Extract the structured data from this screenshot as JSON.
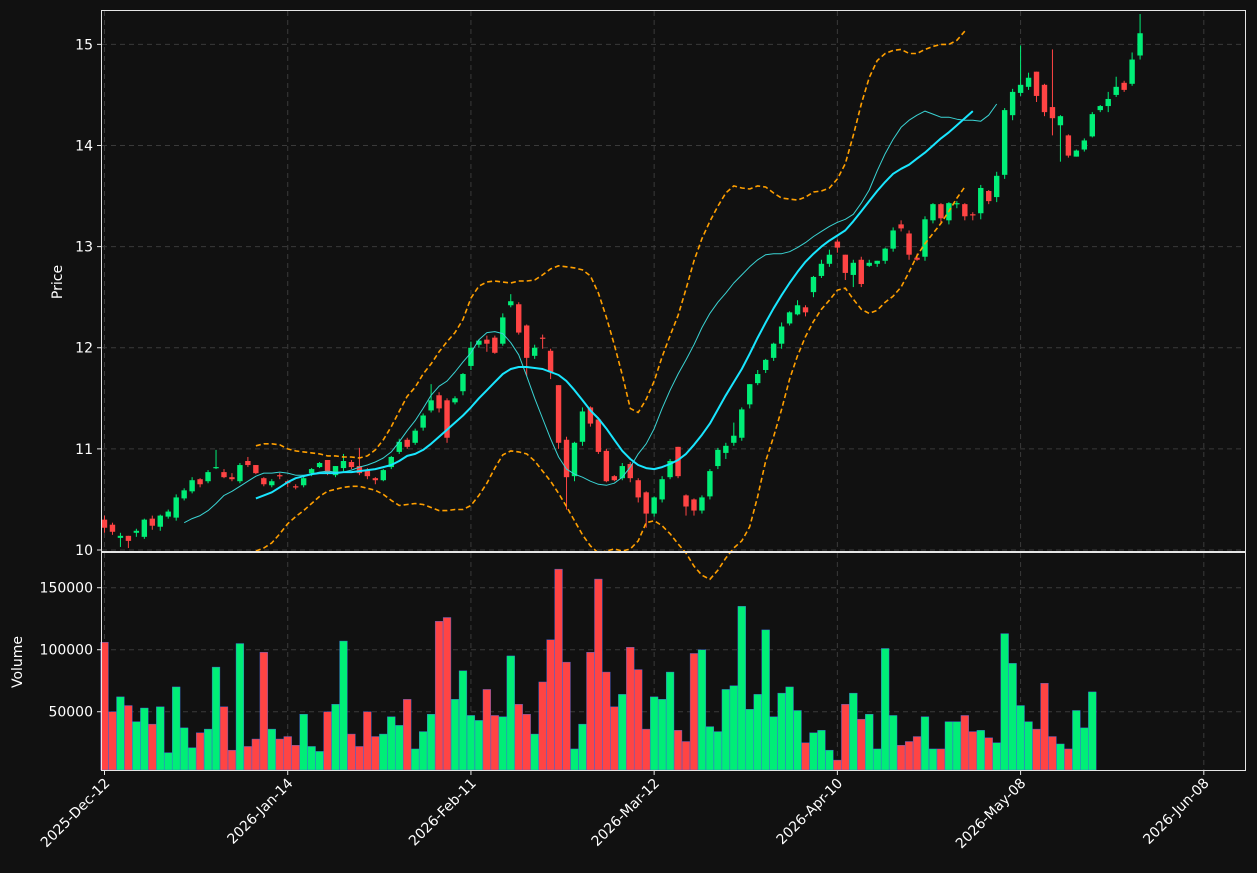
{
  "chart_data": [
    {
      "type": "candlestick",
      "panel": "price",
      "ylabel": "Price",
      "ylim": [
        9.99,
        15.33
      ],
      "yticks": [
        10,
        11,
        12,
        13,
        14,
        15
      ],
      "grid": true,
      "xlabels": [
        "2025-Dec-12",
        "2026-Jan-14",
        "2026-Feb-11",
        "2026-Mar-12",
        "2026-Apr-10",
        "2026-May-08",
        "2026-Jun-08"
      ],
      "xlabel_bar_index": [
        0,
        23,
        46,
        69,
        92,
        115,
        138
      ],
      "close": [
        10.22,
        10.18,
        10.14,
        10.09,
        10.19,
        10.3,
        10.24,
        10.34,
        10.38,
        10.52,
        10.59,
        10.69,
        10.65,
        10.77,
        10.82,
        10.72,
        10.7,
        10.84,
        10.84,
        10.76,
        10.65,
        10.68,
        10.73,
        10.66,
        10.62,
        10.71,
        10.8,
        10.86,
        10.76,
        10.83,
        10.88,
        10.82,
        10.76,
        10.73,
        10.69,
        10.79,
        10.92,
        11.07,
        11.02,
        11.18,
        11.33,
        11.48,
        11.4,
        11.11,
        11.5,
        11.74,
        12.0,
        12.07,
        12.04,
        11.95,
        12.3,
        12.46,
        12.15,
        11.9,
        12.0,
        12.09,
        11.76,
        11.06,
        10.72,
        11.06,
        11.37,
        11.25,
        10.97,
        10.68,
        10.69,
        10.83,
        10.71,
        10.52,
        10.36,
        10.52,
        10.7,
        10.88,
        10.73,
        10.43,
        10.39,
        10.52,
        10.78,
        10.99,
        11.03,
        11.13,
        11.39,
        11.64,
        11.74,
        11.88,
        12.04,
        12.21,
        12.35,
        12.42,
        12.35,
        12.7,
        12.83,
        12.92,
        12.99,
        12.74,
        12.84,
        12.63,
        12.84,
        12.86,
        12.98,
        13.16,
        13.18,
        12.92,
        12.87,
        13.27,
        13.42,
        13.28,
        13.43,
        13.43,
        13.3,
        13.31,
        13.58,
        13.45,
        13.7,
        14.35,
        14.53,
        14.6,
        14.67,
        14.49,
        14.33,
        14.27,
        14.29,
        13.9,
        13.95,
        14.05,
        14.31,
        14.39,
        14.46,
        14.58,
        14.55,
        14.85,
        15.11
      ],
      "open": [
        10.3,
        10.25,
        10.12,
        10.14,
        10.17,
        10.13,
        10.31,
        10.23,
        10.33,
        10.32,
        10.51,
        10.58,
        10.7,
        10.68,
        10.82,
        10.77,
        10.72,
        10.68,
        10.88,
        10.84,
        10.71,
        10.64,
        10.74,
        10.68,
        10.63,
        10.64,
        10.76,
        10.82,
        10.89,
        10.74,
        10.81,
        10.87,
        10.83,
        10.79,
        10.71,
        10.69,
        10.82,
        10.97,
        11.09,
        11.06,
        11.21,
        11.38,
        11.53,
        11.48,
        11.46,
        11.57,
        11.82,
        12.03,
        12.08,
        12.1,
        12.04,
        12.42,
        12.43,
        12.22,
        11.92,
        12.1,
        11.97,
        11.63,
        11.09,
        10.73,
        11.07,
        11.41,
        11.29,
        10.98,
        10.73,
        10.71,
        10.85,
        10.69,
        10.57,
        10.36,
        10.5,
        10.72,
        11.02,
        10.54,
        10.5,
        10.39,
        10.53,
        10.83,
        10.96,
        11.06,
        11.11,
        11.44,
        11.65,
        11.78,
        11.9,
        12.04,
        12.24,
        12.33,
        12.4,
        12.55,
        12.71,
        12.83,
        13.05,
        12.92,
        12.72,
        12.87,
        12.81,
        12.83,
        12.86,
        12.98,
        13.22,
        13.13,
        12.89,
        12.9,
        13.26,
        13.42,
        13.26,
        13.42,
        13.42,
        13.32,
        13.33,
        13.55,
        13.49,
        13.71,
        14.3,
        14.52,
        14.58,
        14.73,
        14.6,
        14.38,
        14.2,
        14.1,
        13.89,
        13.96,
        14.09,
        14.35,
        14.39,
        14.5,
        14.62,
        14.61,
        14.89
      ],
      "high": [
        10.34,
        10.27,
        10.17,
        10.14,
        10.21,
        10.31,
        10.34,
        10.35,
        10.4,
        10.55,
        10.61,
        10.72,
        10.71,
        10.79,
        10.99,
        10.8,
        10.76,
        10.86,
        10.92,
        10.84,
        10.72,
        10.7,
        10.76,
        10.69,
        10.65,
        10.73,
        10.81,
        10.87,
        10.89,
        10.83,
        10.95,
        10.89,
        11.01,
        10.81,
        10.72,
        10.8,
        10.93,
        11.1,
        11.11,
        11.2,
        11.35,
        11.64,
        11.56,
        11.5,
        11.52,
        11.75,
        12.06,
        12.08,
        12.12,
        12.12,
        12.34,
        12.53,
        12.45,
        12.23,
        12.03,
        12.13,
        11.99,
        11.63,
        11.12,
        11.07,
        11.41,
        11.42,
        11.31,
        11.0,
        10.74,
        10.86,
        10.87,
        10.71,
        10.58,
        10.53,
        10.73,
        10.9,
        11.02,
        10.55,
        10.51,
        10.54,
        10.8,
        11.01,
        11.06,
        11.26,
        11.41,
        11.64,
        11.78,
        11.89,
        12.05,
        12.25,
        12.36,
        12.47,
        12.42,
        12.71,
        12.87,
        12.97,
        13.07,
        12.92,
        12.87,
        12.9,
        12.87,
        12.86,
        12.99,
        13.19,
        13.26,
        13.16,
        12.93,
        13.3,
        13.43,
        13.43,
        13.44,
        13.45,
        13.43,
        13.34,
        13.61,
        13.56,
        13.74,
        14.37,
        14.56,
        14.99,
        14.72,
        14.73,
        14.61,
        14.95,
        14.3,
        14.11,
        13.96,
        14.07,
        14.33,
        14.4,
        14.53,
        14.68,
        14.64,
        14.92,
        15.3
      ],
      "low": [
        10.17,
        10.15,
        10.03,
        10.02,
        10.13,
        10.11,
        10.2,
        10.19,
        10.31,
        10.29,
        10.49,
        10.56,
        10.62,
        10.66,
        10.8,
        10.71,
        10.68,
        10.66,
        10.82,
        10.75,
        10.63,
        10.62,
        10.7,
        10.62,
        10.6,
        10.62,
        10.73,
        10.81,
        10.74,
        10.72,
        10.78,
        10.8,
        10.74,
        10.7,
        10.65,
        10.68,
        10.8,
        10.95,
        11.0,
        11.04,
        11.18,
        11.36,
        11.36,
        11.06,
        11.44,
        11.53,
        11.78,
        12.0,
        11.96,
        11.94,
        12.02,
        12.4,
        12.13,
        11.72,
        11.89,
        11.99,
        11.69,
        11.0,
        10.4,
        10.68,
        11.03,
        11.22,
        10.95,
        10.67,
        10.68,
        10.69,
        10.67,
        10.47,
        10.22,
        10.33,
        10.47,
        10.7,
        10.71,
        10.34,
        10.34,
        10.36,
        10.5,
        10.8,
        10.9,
        11.03,
        11.08,
        11.4,
        11.63,
        11.75,
        11.87,
        11.99,
        12.22,
        12.32,
        12.31,
        12.5,
        12.69,
        12.8,
        12.94,
        12.67,
        12.6,
        12.6,
        12.8,
        12.8,
        12.83,
        12.95,
        13.15,
        12.87,
        12.86,
        12.86,
        13.23,
        13.24,
        13.22,
        13.38,
        13.26,
        13.26,
        13.27,
        13.42,
        13.44,
        13.67,
        14.25,
        14.49,
        14.55,
        14.43,
        14.29,
        14.1,
        13.84,
        13.88,
        13.89,
        13.94,
        14.08,
        14.33,
        14.33,
        14.48,
        14.53,
        14.59,
        14.85
      ],
      "series": [
        {
          "name": "",
          "style": "thin line",
          "color": "#3ad3d3",
          "start_index": 10,
          "values": [
            10.27,
            10.31,
            10.34,
            10.39,
            10.46,
            10.54,
            10.58,
            10.63,
            10.68,
            10.73,
            10.76,
            10.76,
            10.77,
            10.76,
            10.74,
            10.74,
            10.75,
            10.77,
            10.78,
            10.77,
            10.77,
            10.79,
            10.82,
            10.84,
            10.87,
            10.91,
            10.97,
            11.07,
            11.18,
            11.28,
            11.4,
            11.53,
            11.62,
            11.67,
            11.76,
            11.86,
            11.95,
            12.08,
            12.15,
            12.16,
            12.14,
            12.05,
            11.93,
            11.72,
            11.5,
            11.3,
            11.1,
            10.92,
            10.8,
            10.75,
            10.72,
            10.68,
            10.65,
            10.64,
            10.66,
            10.72,
            10.82,
            10.95,
            11.05,
            11.2,
            11.4,
            11.58,
            11.74,
            11.88,
            12.03,
            12.2,
            12.34,
            12.45,
            12.54,
            12.64,
            12.72,
            12.8,
            12.87,
            12.92,
            12.93,
            12.93,
            12.95,
            12.99,
            13.04,
            13.1,
            13.15,
            13.2,
            13.24,
            13.27,
            13.32,
            13.43,
            13.56,
            13.75,
            13.92,
            14.06,
            14.18,
            14.25,
            14.3,
            14.34,
            14.31,
            14.28,
            14.28,
            14.26,
            14.25,
            14.25,
            14.24,
            14.3,
            14.41
          ]
        },
        {
          "name": "",
          "style": "thick line",
          "color": "#19e6ff",
          "start_index": 19,
          "values": [
            10.51,
            10.54,
            10.57,
            10.62,
            10.67,
            10.71,
            10.73,
            10.75,
            10.76,
            10.76,
            10.76,
            10.77,
            10.77,
            10.78,
            10.79,
            10.8,
            10.82,
            10.84,
            10.88,
            10.93,
            10.95,
            10.99,
            11.05,
            11.12,
            11.19,
            11.26,
            11.33,
            11.41,
            11.5,
            11.58,
            11.66,
            11.74,
            11.79,
            11.81,
            11.81,
            11.8,
            11.79,
            11.76,
            11.73,
            11.67,
            11.58,
            11.48,
            11.38,
            11.3,
            11.2,
            11.09,
            10.98,
            10.9,
            10.84,
            10.81,
            10.8,
            10.82,
            10.85,
            10.89,
            10.95,
            11.04,
            11.14,
            11.25,
            11.39,
            11.53,
            11.66,
            11.79,
            11.94,
            12.1,
            12.25,
            12.39,
            12.52,
            12.64,
            12.75,
            12.85,
            12.93,
            13.0,
            13.06,
            13.11,
            13.16,
            13.25,
            13.35,
            13.45,
            13.55,
            13.64,
            13.72,
            13.77,
            13.81,
            13.87,
            13.93,
            14.0,
            14.07,
            14.13,
            14.2,
            14.27,
            14.34
          ]
        },
        {
          "name": "",
          "style": "dashed",
          "color": "#ff9f00",
          "start_index": 19,
          "values": [
            11.03,
            11.05,
            11.05,
            11.04,
            11.0,
            10.98,
            10.97,
            10.96,
            10.95,
            10.93,
            10.93,
            10.92,
            10.92,
            10.91,
            10.93,
            10.99,
            11.09,
            11.22,
            11.37,
            11.52,
            11.61,
            11.74,
            11.84,
            11.96,
            12.06,
            12.15,
            12.28,
            12.49,
            12.61,
            12.65,
            12.66,
            12.65,
            12.64,
            12.66,
            12.66,
            12.67,
            12.72,
            12.78,
            12.81,
            12.8,
            12.79,
            12.77,
            12.71,
            12.54,
            12.3,
            12.03,
            11.73,
            11.4,
            11.36,
            11.49,
            11.67,
            11.91,
            12.12,
            12.32,
            12.58,
            12.86,
            13.08,
            13.25,
            13.4,
            13.53,
            13.6,
            13.58,
            13.57,
            13.6,
            13.59,
            13.53,
            13.48,
            13.47,
            13.46,
            13.49,
            13.54,
            13.55,
            13.58,
            13.67,
            13.82,
            14.1,
            14.41,
            14.67,
            14.84,
            14.91,
            14.94,
            14.95,
            14.91,
            14.91,
            14.95,
            14.98,
            15.0,
            15.0,
            15.04,
            15.13
          ]
        },
        {
          "name": "",
          "style": "dashed",
          "color": "#ff9f00",
          "start_index": 19,
          "values": [
            9.99,
            10.02,
            10.07,
            10.16,
            10.26,
            10.33,
            10.39,
            10.46,
            10.53,
            10.58,
            10.6,
            10.62,
            10.63,
            10.63,
            10.61,
            10.59,
            10.55,
            10.49,
            10.44,
            10.45,
            10.46,
            10.45,
            10.42,
            10.39,
            10.39,
            10.4,
            10.4,
            10.44,
            10.54,
            10.66,
            10.81,
            10.94,
            10.98,
            10.97,
            10.95,
            10.88,
            10.78,
            10.68,
            10.56,
            10.43,
            10.29,
            10.15,
            10.04,
            9.97,
            9.99,
            10.01,
            9.99,
            10.01,
            10.09,
            10.27,
            10.29,
            10.24,
            10.16,
            10.06,
            9.97,
            9.84,
            9.75,
            9.71,
            9.8,
            9.92,
            10.02,
            10.09,
            10.23,
            10.53,
            10.88,
            11.12,
            11.39,
            11.69,
            11.92,
            12.11,
            12.26,
            12.38,
            12.47,
            12.57,
            12.59,
            12.48,
            12.38,
            12.34,
            12.37,
            12.45,
            12.51,
            12.6,
            12.75,
            12.91,
            13.03,
            13.13,
            13.23,
            13.35,
            13.48,
            13.59
          ]
        }
      ]
    },
    {
      "type": "bar",
      "panel": "volume",
      "ylabel": "Volume",
      "ylim": [
        3000,
        178000
      ],
      "yticks": [
        50000,
        100000,
        150000
      ],
      "grid": true,
      "colors": {
        "up": "#00ee77",
        "down": "#ff4444"
      },
      "values": [
        106000,
        50000,
        62000,
        55000,
        42000,
        53000,
        40000,
        54000,
        17000,
        70000,
        37000,
        21000,
        33000,
        36000,
        86000,
        54000,
        19000,
        105000,
        22000,
        28000,
        98000,
        36000,
        28000,
        30000,
        23000,
        48000,
        22000,
        18000,
        50000,
        56000,
        107000,
        32000,
        22000,
        50000,
        30000,
        32000,
        46000,
        39000,
        60000,
        20000,
        34000,
        48000,
        123000,
        126000,
        60000,
        83000,
        47000,
        43000,
        68000,
        47000,
        46000,
        95000,
        56000,
        48000,
        32000,
        74000,
        108000,
        165000,
        90000,
        20000,
        40000,
        98000,
        157000,
        82000,
        54000,
        64000,
        102000,
        84000,
        36000,
        62000,
        60000,
        82000,
        35000,
        26000,
        97000,
        100000,
        38000,
        34000,
        68000,
        71000,
        135000,
        52000,
        64000,
        116000,
        46000,
        65000,
        70000,
        51000,
        25000,
        33000,
        35000,
        19000,
        11000,
        56000,
        65000,
        44000,
        48000,
        20000,
        101000,
        47000,
        23000,
        26000,
        30000,
        46000,
        20000,
        20000,
        42000,
        42000,
        47000,
        34000,
        35000,
        29000,
        25000,
        113000,
        89000,
        55000,
        42000,
        36000,
        73000,
        30000,
        24000,
        20000,
        51000,
        37000,
        66000
      ]
    }
  ]
}
